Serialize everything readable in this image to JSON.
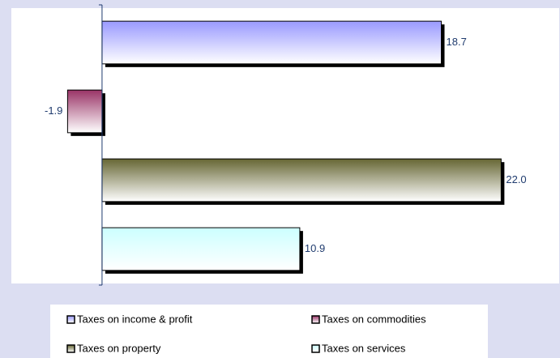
{
  "chart_data": {
    "type": "bar",
    "orientation": "horizontal",
    "xlim": [
      -5,
      25.2
    ],
    "series": [
      {
        "name": "Taxes on income & profit",
        "color": "#9999ff",
        "values": [
          18.7
        ],
        "value_labels": [
          "18.7"
        ]
      },
      {
        "name": "Taxes on commodities",
        "color": "#993366",
        "values": [
          -1.9
        ],
        "value_labels": [
          "-1.9"
        ]
      },
      {
        "name": "Taxes on property",
        "color": "#666633",
        "values": [
          22.0
        ],
        "value_labels": [
          "22.0"
        ]
      },
      {
        "name": "Taxes on services",
        "color": "#ccffff",
        "values": [
          10.9
        ],
        "value_labels": [
          "10.9"
        ]
      }
    ]
  }
}
